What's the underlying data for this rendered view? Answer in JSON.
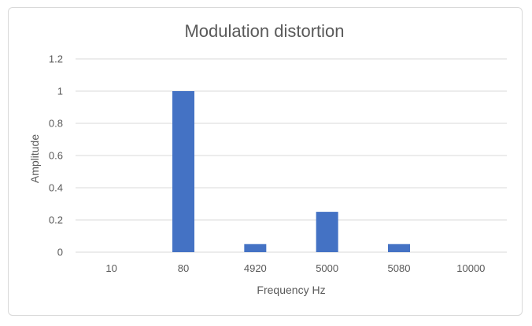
{
  "chart_data": {
    "type": "bar",
    "title": "Modulation distortion",
    "xlabel": "Frequency Hz",
    "ylabel": "Amplitude",
    "categories": [
      "10",
      "80",
      "4920",
      "5000",
      "5080",
      "10000"
    ],
    "values": [
      0,
      1,
      0.05,
      0.25,
      0.05,
      0
    ],
    "ylim": [
      0,
      1.2
    ],
    "yticks": [
      "0",
      "0.2",
      "0.4",
      "0.6",
      "0.8",
      "1",
      "1.2"
    ],
    "grid": true,
    "legend": "none",
    "colors": {
      "bar": "#4472c4",
      "grid": "#d9d9d9",
      "text": "#595959"
    }
  }
}
